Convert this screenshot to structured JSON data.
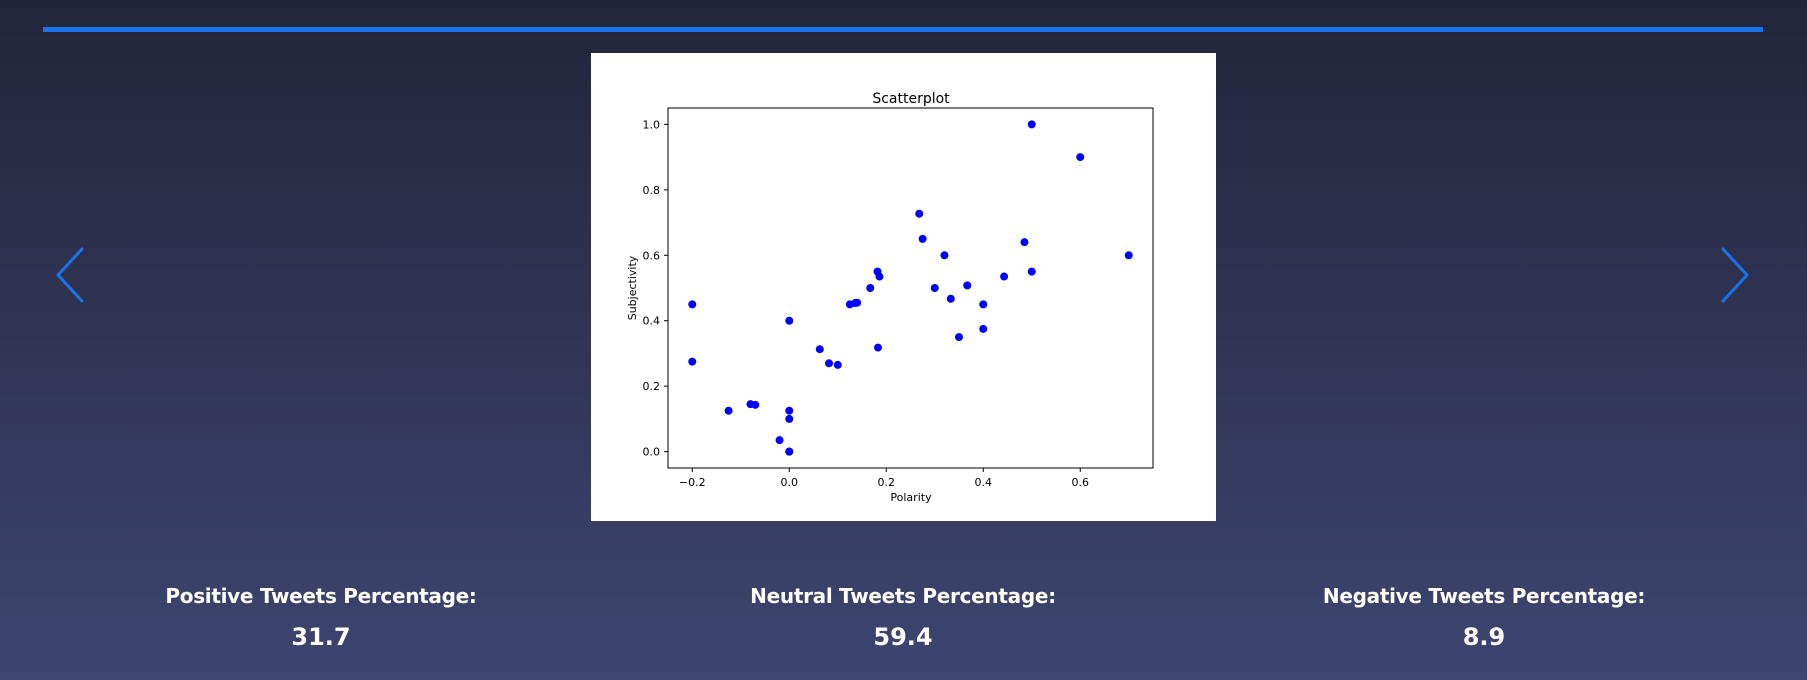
{
  "carousel": {
    "prev_icon": "chevron-left-icon",
    "next_icon": "chevron-right-icon",
    "accent_color": "#1a73e8"
  },
  "chart_data": {
    "type": "scatter",
    "title": "Scatterplot",
    "xlabel": "Polarity",
    "ylabel": "Subjectivity",
    "xlim": [
      -0.25,
      0.75
    ],
    "ylim": [
      -0.05,
      1.05
    ],
    "xticks": [
      -0.2,
      0.0,
      0.2,
      0.4,
      0.6
    ],
    "xtick_labels": [
      "−0.2",
      "0.0",
      "0.2",
      "0.4",
      "0.6"
    ],
    "yticks": [
      0.0,
      0.2,
      0.4,
      0.6,
      0.8,
      1.0
    ],
    "ytick_labels": [
      "0.0",
      "0.2",
      "0.4",
      "0.6",
      "0.8",
      "1.0"
    ],
    "grid": false,
    "point_color": "#0000ff",
    "points": [
      [
        -0.2,
        0.45
      ],
      [
        -0.2,
        0.275
      ],
      [
        -0.125,
        0.125
      ],
      [
        -0.08,
        0.145
      ],
      [
        -0.07,
        0.143
      ],
      [
        -0.02,
        0.035
      ],
      [
        0.0,
        0.0
      ],
      [
        0.0,
        0.0
      ],
      [
        0.0,
        0.1
      ],
      [
        0.0,
        0.125
      ],
      [
        0.0,
        0.4
      ],
      [
        0.063,
        0.313
      ],
      [
        0.082,
        0.27
      ],
      [
        0.1,
        0.265
      ],
      [
        0.125,
        0.45
      ],
      [
        0.136,
        0.454
      ],
      [
        0.14,
        0.455
      ],
      [
        0.167,
        0.5
      ],
      [
        0.182,
        0.55
      ],
      [
        0.186,
        0.535
      ],
      [
        0.183,
        0.318
      ],
      [
        0.268,
        0.727
      ],
      [
        0.275,
        0.65
      ],
      [
        0.3,
        0.5
      ],
      [
        0.32,
        0.6
      ],
      [
        0.333,
        0.467
      ],
      [
        0.35,
        0.35
      ],
      [
        0.367,
        0.508
      ],
      [
        0.4,
        0.45
      ],
      [
        0.4,
        0.375
      ],
      [
        0.443,
        0.535
      ],
      [
        0.485,
        0.64
      ],
      [
        0.5,
        0.55
      ],
      [
        0.5,
        1.0
      ],
      [
        0.6,
        0.9
      ],
      [
        0.7,
        0.6
      ]
    ]
  },
  "stats": {
    "positive_label": "Positive Tweets Percentage:",
    "positive_value": "31.7",
    "neutral_label": "Neutral Tweets Percentage:",
    "neutral_value": "59.4",
    "negative_label": "Negative Tweets Percentage:",
    "negative_value": "8.9"
  }
}
